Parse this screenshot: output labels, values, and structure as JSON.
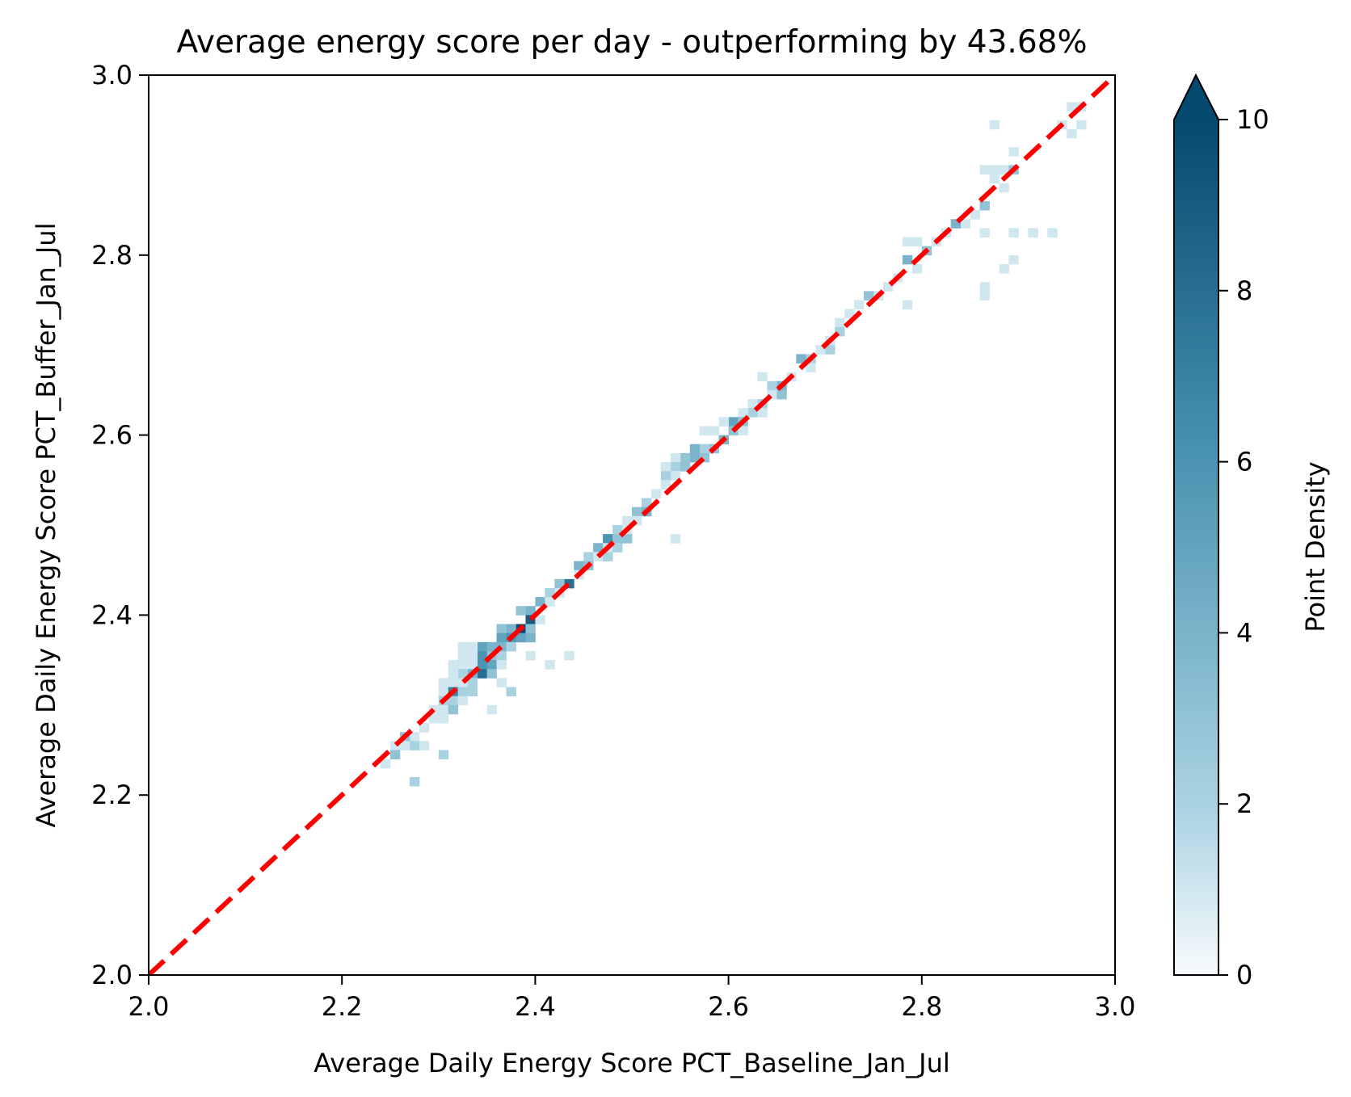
{
  "chart_data": {
    "type": "heatmap",
    "title": "Average energy score per day - outperforming by 43.68%",
    "xlabel": "Average Daily Energy Score PCT_Baseline_Jan_Jul",
    "ylabel": "Average Daily Energy Score PCT_Buffer_Jan_Jul",
    "xlim": [
      2.0,
      3.0
    ],
    "ylim": [
      2.0,
      3.0
    ],
    "x_ticks": [
      "2.0",
      "2.2",
      "2.4",
      "2.6",
      "2.8",
      "3.0"
    ],
    "y_ticks": [
      "2.0",
      "2.2",
      "2.4",
      "2.6",
      "2.8",
      "3.0"
    ],
    "bin_size": 0.01,
    "colorbar": {
      "label": "Point Density",
      "min": 0,
      "max": 10,
      "ticks": [
        "0",
        "2",
        "4",
        "6",
        "8",
        "10"
      ],
      "extend": "max",
      "colors": [
        "#f7fbfd",
        "#a9d2e1",
        "#4b94b2",
        "#044a70"
      ]
    },
    "reference_line": {
      "x": [
        2.0,
        3.0
      ],
      "y": [
        2.0,
        3.0
      ],
      "style": "dashed",
      "color": "#ff0000"
    },
    "cells": [
      [
        2.95,
        2.96,
        1
      ],
      [
        2.96,
        2.96,
        1
      ],
      [
        2.94,
        2.94,
        1
      ],
      [
        2.96,
        2.94,
        1
      ],
      [
        2.95,
        2.93,
        1
      ],
      [
        2.87,
        2.94,
        1
      ],
      [
        2.89,
        2.91,
        1
      ],
      [
        2.88,
        2.89,
        1
      ],
      [
        2.86,
        2.89,
        1
      ],
      [
        2.87,
        2.89,
        1
      ],
      [
        2.89,
        2.89,
        3
      ],
      [
        2.87,
        2.88,
        1
      ],
      [
        2.88,
        2.87,
        1
      ],
      [
        2.86,
        2.85,
        3
      ],
      [
        2.85,
        2.84,
        1
      ],
      [
        2.84,
        2.83,
        1
      ],
      [
        2.83,
        2.83,
        4
      ],
      [
        2.82,
        2.82,
        1
      ],
      [
        2.81,
        2.81,
        1
      ],
      [
        2.8,
        2.8,
        3
      ],
      [
        2.79,
        2.81,
        1
      ],
      [
        2.78,
        2.81,
        1
      ],
      [
        2.86,
        2.82,
        1
      ],
      [
        2.89,
        2.82,
        1
      ],
      [
        2.91,
        2.82,
        1
      ],
      [
        2.93,
        2.82,
        1
      ],
      [
        2.89,
        2.79,
        1
      ],
      [
        2.88,
        2.78,
        1
      ],
      [
        2.86,
        2.76,
        1
      ],
      [
        2.86,
        2.75,
        1
      ],
      [
        2.78,
        2.79,
        4
      ],
      [
        2.79,
        2.78,
        1
      ],
      [
        2.78,
        2.74,
        1
      ],
      [
        2.77,
        2.77,
        1
      ],
      [
        2.76,
        2.76,
        1
      ],
      [
        2.75,
        2.75,
        1
      ],
      [
        2.74,
        2.75,
        3
      ],
      [
        2.73,
        2.74,
        1
      ],
      [
        2.72,
        2.73,
        1
      ],
      [
        2.71,
        2.72,
        1
      ],
      [
        2.71,
        2.71,
        2
      ],
      [
        2.7,
        2.7,
        1
      ],
      [
        2.7,
        2.69,
        2
      ],
      [
        2.69,
        2.69,
        1
      ],
      [
        2.68,
        2.68,
        2
      ],
      [
        2.67,
        2.68,
        4
      ],
      [
        2.68,
        2.67,
        1
      ],
      [
        2.66,
        2.66,
        1
      ],
      [
        2.63,
        2.66,
        1
      ],
      [
        2.65,
        2.65,
        4
      ],
      [
        2.64,
        2.65,
        2
      ],
      [
        2.64,
        2.64,
        1
      ],
      [
        2.65,
        2.64,
        3
      ],
      [
        2.63,
        2.63,
        2
      ],
      [
        2.62,
        2.63,
        1
      ],
      [
        2.62,
        2.62,
        2
      ],
      [
        2.61,
        2.62,
        1
      ],
      [
        2.63,
        2.62,
        1
      ],
      [
        2.6,
        2.61,
        5
      ],
      [
        2.59,
        2.61,
        1
      ],
      [
        2.61,
        2.61,
        3
      ],
      [
        2.6,
        2.6,
        3
      ],
      [
        2.61,
        2.6,
        1
      ],
      [
        2.59,
        2.59,
        4
      ],
      [
        2.58,
        2.6,
        1
      ],
      [
        2.57,
        2.6,
        1
      ],
      [
        2.58,
        2.58,
        3
      ],
      [
        2.57,
        2.58,
        2
      ],
      [
        2.56,
        2.58,
        4
      ],
      [
        2.57,
        2.57,
        3
      ],
      [
        2.56,
        2.57,
        4
      ],
      [
        2.55,
        2.57,
        3
      ],
      [
        2.54,
        2.57,
        1
      ],
      [
        2.54,
        2.56,
        2
      ],
      [
        2.55,
        2.56,
        3
      ],
      [
        2.53,
        2.56,
        1
      ],
      [
        2.54,
        2.55,
        1
      ],
      [
        2.53,
        2.55,
        2
      ],
      [
        2.53,
        2.54,
        1
      ],
      [
        2.52,
        2.53,
        1
      ],
      [
        2.51,
        2.52,
        2
      ],
      [
        2.5,
        2.51,
        3
      ],
      [
        2.51,
        2.51,
        4
      ],
      [
        2.5,
        2.5,
        1
      ],
      [
        2.49,
        2.5,
        1
      ],
      [
        2.48,
        2.49,
        2
      ],
      [
        2.49,
        2.49,
        1
      ],
      [
        2.54,
        2.48,
        1
      ],
      [
        2.47,
        2.48,
        6
      ],
      [
        2.48,
        2.48,
        3
      ],
      [
        2.49,
        2.48,
        3
      ],
      [
        2.46,
        2.47,
        4
      ],
      [
        2.47,
        2.47,
        1
      ],
      [
        2.48,
        2.47,
        2
      ],
      [
        2.45,
        2.46,
        2
      ],
      [
        2.46,
        2.46,
        1
      ],
      [
        2.47,
        2.46,
        2
      ],
      [
        2.44,
        2.45,
        4
      ],
      [
        2.45,
        2.45,
        3
      ],
      [
        2.44,
        2.44,
        1
      ],
      [
        2.43,
        2.43,
        8
      ],
      [
        2.42,
        2.43,
        3
      ],
      [
        2.42,
        2.42,
        1
      ],
      [
        2.41,
        2.42,
        2
      ],
      [
        2.4,
        2.41,
        4
      ],
      [
        2.41,
        2.41,
        1
      ],
      [
        2.39,
        2.4,
        4
      ],
      [
        2.38,
        2.4,
        3
      ],
      [
        2.39,
        2.39,
        9
      ],
      [
        2.4,
        2.39,
        1
      ],
      [
        2.38,
        2.38,
        10
      ],
      [
        2.37,
        2.38,
        4
      ],
      [
        2.36,
        2.38,
        3
      ],
      [
        2.39,
        2.38,
        3
      ],
      [
        2.36,
        2.37,
        5
      ],
      [
        2.37,
        2.37,
        6
      ],
      [
        2.38,
        2.37,
        5
      ],
      [
        2.39,
        2.37,
        4
      ],
      [
        2.35,
        2.36,
        4
      ],
      [
        2.34,
        2.36,
        5
      ],
      [
        2.33,
        2.36,
        1
      ],
      [
        2.32,
        2.36,
        1
      ],
      [
        2.36,
        2.36,
        4
      ],
      [
        2.37,
        2.36,
        2
      ],
      [
        2.34,
        2.35,
        6
      ],
      [
        2.35,
        2.35,
        3
      ],
      [
        2.33,
        2.35,
        1
      ],
      [
        2.32,
        2.35,
        1
      ],
      [
        2.36,
        2.35,
        2
      ],
      [
        2.39,
        2.35,
        1
      ],
      [
        2.43,
        2.35,
        1
      ],
      [
        2.34,
        2.34,
        6
      ],
      [
        2.35,
        2.34,
        5
      ],
      [
        2.36,
        2.34,
        1
      ],
      [
        2.33,
        2.34,
        1
      ],
      [
        2.32,
        2.34,
        1
      ],
      [
        2.31,
        2.34,
        1
      ],
      [
        2.41,
        2.34,
        1
      ],
      [
        2.34,
        2.33,
        8
      ],
      [
        2.33,
        2.33,
        4
      ],
      [
        2.35,
        2.33,
        3
      ],
      [
        2.32,
        2.33,
        2
      ],
      [
        2.31,
        2.33,
        1
      ],
      [
        2.36,
        2.32,
        1
      ],
      [
        2.33,
        2.32,
        2
      ],
      [
        2.32,
        2.32,
        1
      ],
      [
        2.31,
        2.32,
        1
      ],
      [
        2.3,
        2.32,
        1
      ],
      [
        2.3,
        2.31,
        1
      ],
      [
        2.31,
        2.31,
        7
      ],
      [
        2.32,
        2.31,
        2
      ],
      [
        2.33,
        2.31,
        2
      ],
      [
        2.37,
        2.31,
        2
      ],
      [
        2.3,
        2.3,
        2
      ],
      [
        2.31,
        2.3,
        2
      ],
      [
        2.32,
        2.3,
        1
      ],
      [
        2.35,
        2.29,
        1
      ],
      [
        2.3,
        2.29,
        1
      ],
      [
        2.31,
        2.29,
        3
      ],
      [
        2.29,
        2.29,
        1
      ],
      [
        2.3,
        2.28,
        1
      ],
      [
        2.29,
        2.28,
        1
      ],
      [
        2.28,
        2.27,
        1
      ],
      [
        2.27,
        2.26,
        1
      ],
      [
        2.26,
        2.26,
        3
      ],
      [
        2.27,
        2.25,
        2
      ],
      [
        2.28,
        2.25,
        1
      ],
      [
        2.26,
        2.25,
        1
      ],
      [
        2.25,
        2.25,
        1
      ],
      [
        2.25,
        2.24,
        3
      ],
      [
        2.3,
        2.24,
        2
      ],
      [
        2.24,
        2.23,
        1
      ],
      [
        2.27,
        2.21,
        2
      ]
    ]
  }
}
